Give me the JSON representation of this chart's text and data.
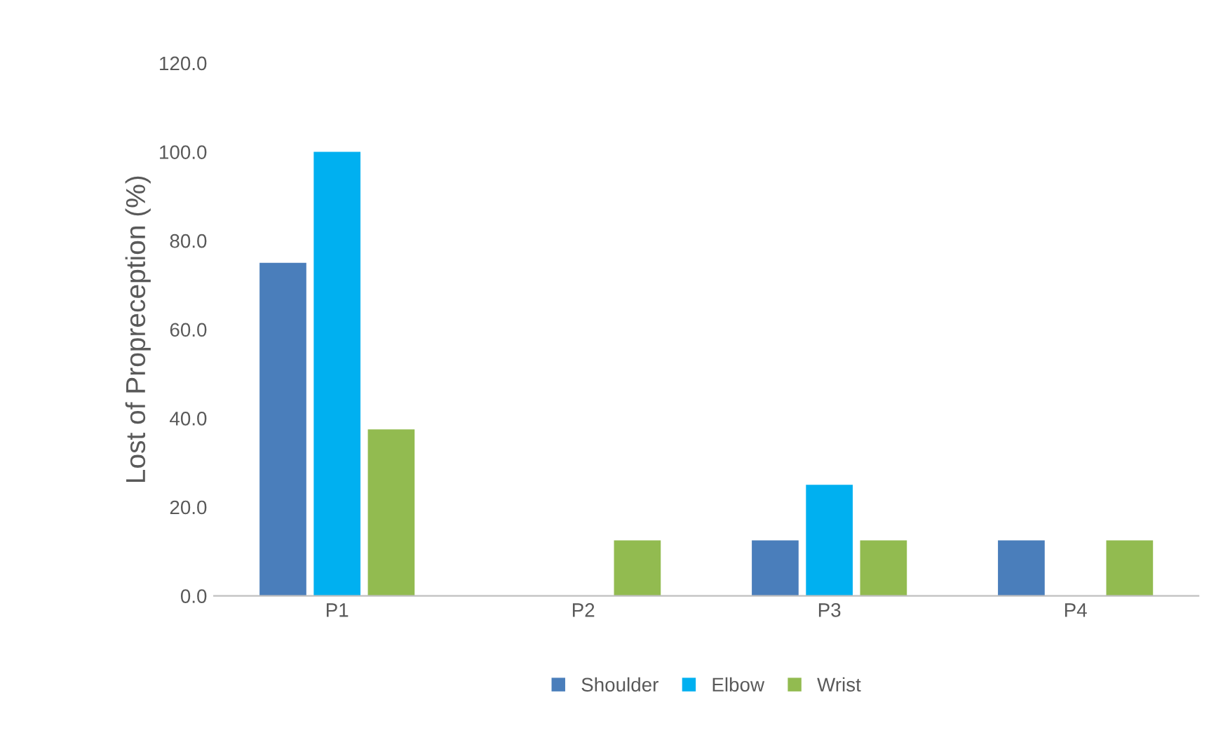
{
  "chart_data": {
    "type": "bar",
    "ylabel": "Lost of Propreception (%)",
    "categories": [
      "P1",
      "P2",
      "P3",
      "P4"
    ],
    "series": [
      {
        "name": "Shoulder",
        "color": "#4a7ebb",
        "values": [
          75.0,
          0.0,
          12.5,
          12.5
        ]
      },
      {
        "name": "Elbow",
        "color": "#00b0f0",
        "values": [
          100.0,
          0.0,
          25.0,
          0.0
        ]
      },
      {
        "name": "Wrist",
        "color": "#92bb50",
        "values": [
          37.5,
          12.5,
          12.5,
          12.5
        ]
      }
    ],
    "ylim": [
      0,
      120
    ],
    "yticks": [
      {
        "value": 0,
        "label": "0.0"
      },
      {
        "value": 20,
        "label": "20.0"
      },
      {
        "value": 40,
        "label": "40.0"
      },
      {
        "value": 60,
        "label": "60.0"
      },
      {
        "value": 80,
        "label": "80.0"
      },
      {
        "value": 100,
        "label": "100.0"
      },
      {
        "value": 120,
        "label": "120.0"
      }
    ],
    "grid": false,
    "legend": "bottom"
  }
}
